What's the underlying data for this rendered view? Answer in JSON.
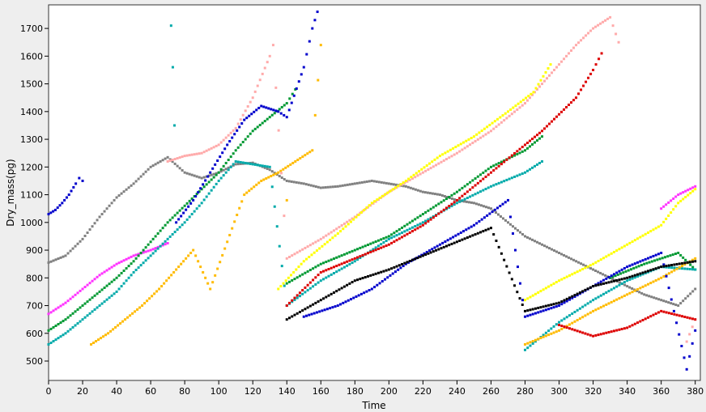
{
  "chart_data": {
    "type": "scatter",
    "xlabel": "Time",
    "ylabel": "Dry_mass(pg)",
    "xlim": [
      0,
      383
    ],
    "ylim": [
      430,
      1785
    ],
    "x_ticks": [
      "0",
      "20",
      "40",
      "60",
      "80",
      "100",
      "120",
      "140",
      "160",
      "180",
      "200",
      "220",
      "240",
      "260",
      "280",
      "300",
      "320",
      "340",
      "360",
      "380"
    ],
    "y_ticks": [
      "500",
      "600",
      "700",
      "800",
      "900",
      "1000",
      "1100",
      "1200",
      "1300",
      "1400",
      "1500",
      "1600",
      "1700"
    ],
    "grid": false,
    "legend": "none",
    "colors": {
      "blue": "#0000cc",
      "gray": "#808080",
      "magenta": "#ff33ff",
      "green": "#009933",
      "teal": "#00aaaa",
      "yellow_orange": "#ffbb00",
      "pink": "#ffaaaa",
      "yellow": "#ffff00",
      "red": "#dd0000",
      "black": "#000000"
    },
    "series": [
      {
        "color": "blue",
        "points": [
          [
            0,
            1030
          ],
          [
            4,
            1045
          ],
          [
            8,
            1070
          ],
          [
            12,
            1100
          ],
          [
            16,
            1140
          ],
          [
            18,
            1160
          ],
          [
            20,
            1150
          ]
        ]
      },
      {
        "color": "gray",
        "points": [
          [
            0,
            855
          ],
          [
            10,
            880
          ],
          [
            20,
            940
          ],
          [
            30,
            1020
          ],
          [
            40,
            1090
          ],
          [
            50,
            1140
          ],
          [
            60,
            1200
          ],
          [
            70,
            1235
          ],
          [
            80,
            1180
          ],
          [
            90,
            1160
          ],
          [
            100,
            1180
          ],
          [
            110,
            1210
          ],
          [
            120,
            1215
          ],
          [
            130,
            1190
          ],
          [
            140,
            1150
          ],
          [
            150,
            1140
          ],
          [
            160,
            1125
          ],
          [
            170,
            1130
          ],
          [
            180,
            1140
          ],
          [
            190,
            1150
          ],
          [
            200,
            1140
          ],
          [
            210,
            1130
          ],
          [
            220,
            1110
          ],
          [
            230,
            1100
          ],
          [
            240,
            1080
          ],
          [
            250,
            1070
          ],
          [
            260,
            1050
          ],
          [
            270,
            1000
          ],
          [
            280,
            950
          ],
          [
            290,
            920
          ],
          [
            300,
            890
          ],
          [
            310,
            860
          ],
          [
            320,
            830
          ],
          [
            330,
            800
          ],
          [
            340,
            770
          ],
          [
            350,
            740
          ],
          [
            360,
            720
          ],
          [
            370,
            700
          ],
          [
            380,
            760
          ]
        ]
      },
      {
        "color": "magenta",
        "points": [
          [
            0,
            670
          ],
          [
            10,
            710
          ],
          [
            20,
            760
          ],
          [
            30,
            810
          ],
          [
            40,
            850
          ],
          [
            50,
            880
          ],
          [
            60,
            900
          ],
          [
            70,
            925
          ],
          [
            360,
            1050
          ],
          [
            370,
            1100
          ],
          [
            380,
            1130
          ]
        ]
      },
      {
        "color": "green",
        "points": [
          [
            0,
            610
          ],
          [
            10,
            650
          ],
          [
            20,
            700
          ],
          [
            30,
            750
          ],
          [
            40,
            800
          ],
          [
            50,
            860
          ],
          [
            60,
            930
          ],
          [
            70,
            1000
          ],
          [
            80,
            1060
          ],
          [
            90,
            1120
          ],
          [
            100,
            1180
          ],
          [
            110,
            1260
          ],
          [
            120,
            1330
          ],
          [
            130,
            1380
          ],
          [
            140,
            1430
          ],
          [
            145,
            1480
          ],
          [
            140,
            780
          ],
          [
            160,
            850
          ],
          [
            180,
            900
          ],
          [
            200,
            950
          ],
          [
            220,
            1030
          ],
          [
            240,
            1110
          ],
          [
            260,
            1200
          ],
          [
            280,
            1260
          ],
          [
            290,
            1310
          ],
          [
            330,
            800
          ],
          [
            350,
            850
          ],
          [
            370,
            890
          ],
          [
            380,
            830
          ]
        ]
      },
      {
        "color": "teal",
        "points": [
          [
            0,
            560
          ],
          [
            10,
            600
          ],
          [
            20,
            650
          ],
          [
            30,
            700
          ],
          [
            40,
            750
          ],
          [
            50,
            820
          ],
          [
            60,
            880
          ],
          [
            70,
            940
          ],
          [
            80,
            1000
          ],
          [
            90,
            1070
          ],
          [
            100,
            1150
          ],
          [
            110,
            1220
          ],
          [
            120,
            1210
          ],
          [
            130,
            1200
          ],
          [
            140,
            700
          ],
          [
            160,
            790
          ],
          [
            180,
            860
          ],
          [
            200,
            940
          ],
          [
            220,
            1000
          ],
          [
            240,
            1070
          ],
          [
            260,
            1130
          ],
          [
            280,
            1180
          ],
          [
            290,
            1220
          ],
          [
            280,
            540
          ],
          [
            300,
            640
          ],
          [
            320,
            720
          ],
          [
            340,
            790
          ],
          [
            360,
            840
          ],
          [
            380,
            830
          ],
          [
            72,
            1710
          ],
          [
            73,
            1560
          ],
          [
            74,
            1350
          ]
        ]
      },
      {
        "color": "yellow_orange",
        "points": [
          [
            25,
            560
          ],
          [
            35,
            600
          ],
          [
            45,
            650
          ],
          [
            55,
            700
          ],
          [
            65,
            760
          ],
          [
            75,
            830
          ],
          [
            85,
            900
          ],
          [
            95,
            760
          ],
          [
            105,
            930
          ],
          [
            115,
            1100
          ],
          [
            125,
            1150
          ],
          [
            135,
            1180
          ],
          [
            145,
            1220
          ],
          [
            155,
            1260
          ],
          [
            160,
            1640
          ],
          [
            140,
            1080
          ],
          [
            280,
            560
          ],
          [
            300,
            610
          ],
          [
            320,
            680
          ],
          [
            340,
            740
          ],
          [
            360,
            800
          ],
          [
            380,
            870
          ]
        ]
      },
      {
        "color": "pink",
        "points": [
          [
            70,
            1220
          ],
          [
            80,
            1240
          ],
          [
            90,
            1250
          ],
          [
            100,
            1280
          ],
          [
            110,
            1340
          ],
          [
            120,
            1450
          ],
          [
            130,
            1600
          ],
          [
            132,
            1640
          ],
          [
            140,
            870
          ],
          [
            160,
            940
          ],
          [
            180,
            1020
          ],
          [
            200,
            1110
          ],
          [
            220,
            1180
          ],
          [
            240,
            1250
          ],
          [
            260,
            1330
          ],
          [
            280,
            1430
          ],
          [
            290,
            1500
          ],
          [
            300,
            1570
          ],
          [
            310,
            1640
          ],
          [
            320,
            1700
          ],
          [
            330,
            1740
          ],
          [
            335,
            1650
          ],
          [
            375,
            570
          ],
          [
            380,
            650
          ]
        ]
      },
      {
        "color": "yellow",
        "points": [
          [
            135,
            760
          ],
          [
            150,
            860
          ],
          [
            170,
            960
          ],
          [
            190,
            1070
          ],
          [
            210,
            1150
          ],
          [
            230,
            1240
          ],
          [
            250,
            1310
          ],
          [
            270,
            1400
          ],
          [
            285,
            1470
          ],
          [
            295,
            1570
          ],
          [
            280,
            720
          ],
          [
            300,
            790
          ],
          [
            320,
            850
          ],
          [
            340,
            920
          ],
          [
            360,
            990
          ],
          [
            370,
            1070
          ],
          [
            380,
            1120
          ]
        ]
      },
      {
        "color": "red",
        "points": [
          [
            140,
            700
          ],
          [
            160,
            820
          ],
          [
            180,
            870
          ],
          [
            200,
            920
          ],
          [
            220,
            990
          ],
          [
            240,
            1080
          ],
          [
            260,
            1180
          ],
          [
            280,
            1280
          ],
          [
            290,
            1330
          ],
          [
            300,
            1390
          ],
          [
            310,
            1450
          ],
          [
            320,
            1550
          ],
          [
            325,
            1610
          ],
          [
            300,
            630
          ],
          [
            320,
            590
          ],
          [
            340,
            620
          ],
          [
            360,
            680
          ],
          [
            380,
            650
          ]
        ]
      },
      {
        "color": "blue",
        "points": [
          [
            75,
            1000
          ],
          [
            85,
            1080
          ],
          [
            95,
            1180
          ],
          [
            105,
            1280
          ],
          [
            115,
            1370
          ],
          [
            125,
            1420
          ],
          [
            135,
            1400
          ],
          [
            140,
            1380
          ],
          [
            150,
            1560
          ],
          [
            155,
            1700
          ],
          [
            158,
            1760
          ],
          [
            150,
            660
          ],
          [
            170,
            700
          ],
          [
            190,
            760
          ],
          [
            210,
            850
          ],
          [
            230,
            920
          ],
          [
            250,
            990
          ],
          [
            270,
            1080
          ],
          [
            280,
            660
          ],
          [
            300,
            700
          ],
          [
            320,
            770
          ],
          [
            340,
            840
          ],
          [
            360,
            890
          ],
          [
            375,
            470
          ],
          [
            380,
            610
          ]
        ]
      },
      {
        "color": "black",
        "points": [
          [
            140,
            650
          ],
          [
            160,
            720
          ],
          [
            180,
            790
          ],
          [
            200,
            830
          ],
          [
            220,
            880
          ],
          [
            240,
            930
          ],
          [
            260,
            980
          ],
          [
            280,
            680
          ],
          [
            300,
            710
          ],
          [
            320,
            770
          ],
          [
            340,
            800
          ],
          [
            360,
            840
          ],
          [
            380,
            860
          ]
        ]
      }
    ]
  }
}
